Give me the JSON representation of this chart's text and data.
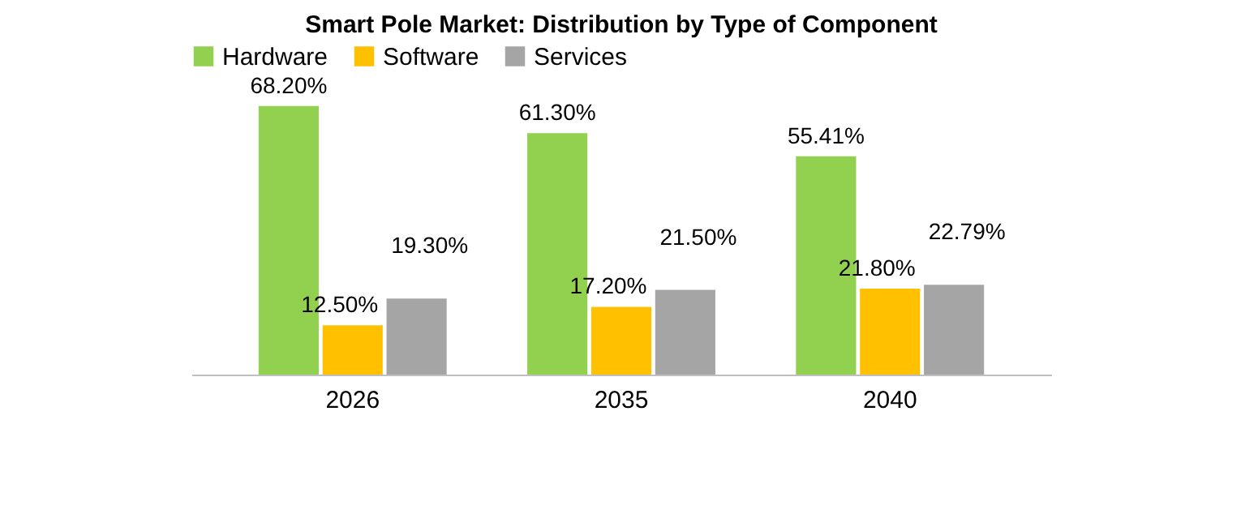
{
  "chart_data": {
    "type": "bar",
    "title": "Smart Pole Market: Distribution by Type of Component",
    "categories": [
      "2026",
      "2035",
      "2040"
    ],
    "series": [
      {
        "name": "Hardware",
        "color": "#92d050",
        "values": [
          68.2,
          61.3,
          55.41
        ],
        "value_labels": [
          "68.20%",
          "61.30%",
          "55.41%"
        ]
      },
      {
        "name": "Software",
        "color": "#ffc000",
        "values": [
          12.5,
          17.2,
          21.8
        ],
        "value_labels": [
          "12.50%",
          "17.20%",
          "21.80%"
        ]
      },
      {
        "name": "Services",
        "color": "#a5a5a5",
        "values": [
          19.3,
          21.5,
          22.79
        ],
        "value_labels": [
          "19.30%",
          "21.50%",
          "22.79%"
        ]
      }
    ],
    "legend": "top",
    "grid": false
  }
}
